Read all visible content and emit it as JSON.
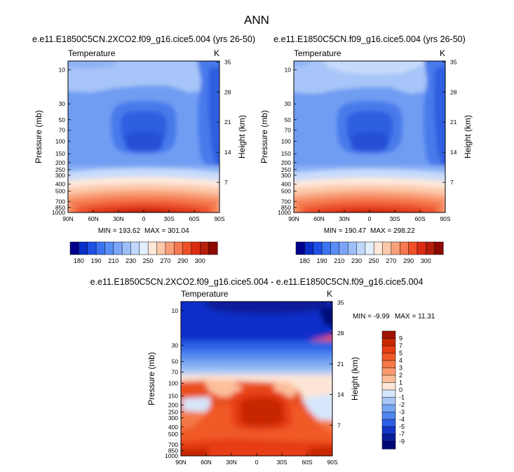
{
  "figure": {
    "title": "ANN"
  },
  "chart_data": [
    {
      "type": "heatmap",
      "title": "e.e11.E1850C5CN.2XCO2.f09_g16.cice5.004 (yrs 26-50)",
      "left_label": "Temperature",
      "units": "K",
      "xlabel": "",
      "ylabel": "Pressure (mb)",
      "y2label": "Height (km)",
      "x_ticks": [
        "90N",
        "60N",
        "30N",
        "0",
        "30S",
        "60S",
        "90S"
      ],
      "y_ticks": [
        "10",
        "30",
        "50",
        "70",
        "100",
        "150",
        "200",
        "250",
        "300",
        "400",
        "500",
        "700",
        "850",
        "1000"
      ],
      "y2_ticks": [
        "35",
        "28",
        "21",
        "14",
        "7"
      ],
      "min_label": "MIN = 193.62",
      "max_label": "MAX = 301.04",
      "min": 193.62,
      "max": 301.04,
      "colorbar": [
        "180",
        "190",
        "210",
        "230",
        "250",
        "270",
        "290",
        "300"
      ],
      "colorbar_colors": [
        "#00008c",
        "#0a2fc8",
        "#1e50e6",
        "#3c73f0",
        "#5a8cf5",
        "#7aa5f7",
        "#9dbff9",
        "#c0d8fb",
        "#e2efff",
        "#ffe8d8",
        "#fcc8aa",
        "#f9a07a",
        "#f57850",
        "#f05028",
        "#dc2d14",
        "#b41e0a",
        "#8c0a00"
      ]
    },
    {
      "type": "heatmap",
      "title": "e.e11.E1850C5CN.f09_g16.cice5.004 (yrs 26-50)",
      "left_label": "Temperature",
      "units": "K",
      "xlabel": "",
      "ylabel": "Pressure (mb)",
      "y2label": "Height (km)",
      "x_ticks": [
        "90N",
        "60N",
        "30N",
        "0",
        "30S",
        "60S",
        "90S"
      ],
      "y_ticks": [
        "10",
        "30",
        "50",
        "70",
        "100",
        "150",
        "200",
        "250",
        "300",
        "400",
        "500",
        "700",
        "850",
        "1000"
      ],
      "y2_ticks": [
        "35",
        "28",
        "21",
        "14",
        "7"
      ],
      "min_label": "MIN = 190.47",
      "max_label": "MAX = 298.22",
      "min": 190.47,
      "max": 298.22,
      "colorbar": [
        "180",
        "190",
        "210",
        "230",
        "250",
        "270",
        "290",
        "300"
      ],
      "colorbar_colors": [
        "#00008c",
        "#0a2fc8",
        "#1e50e6",
        "#3c73f0",
        "#5a8cf5",
        "#7aa5f7",
        "#9dbff9",
        "#c0d8fb",
        "#e2efff",
        "#ffe8d8",
        "#fcc8aa",
        "#f9a07a",
        "#f57850",
        "#f05028",
        "#dc2d14",
        "#b41e0a",
        "#8c0a00"
      ]
    },
    {
      "type": "heatmap",
      "title": "e.e11.E1850C5CN.2XCO2.f09_g16.cice5.004 - e.e11.E1850C5CN.f09_g16.cice5.004",
      "left_label": "Temperature",
      "units": "K",
      "xlabel": "",
      "ylabel": "Pressure (mb)",
      "y2label": "Height (km)",
      "x_ticks": [
        "90N",
        "60N",
        "30N",
        "0",
        "30S",
        "60S",
        "90S"
      ],
      "y_ticks": [
        "10",
        "30",
        "50",
        "70",
        "100",
        "150",
        "200",
        "250",
        "300",
        "400",
        "500",
        "700",
        "850",
        "1000"
      ],
      "y2_ticks": [
        "35",
        "28",
        "21",
        "14",
        "7"
      ],
      "min_label": "MIN = -9.99",
      "max_label": "MAX = 11.31",
      "min": -9.99,
      "max": 11.31,
      "colorbar": [
        "9",
        "7",
        "5",
        "4",
        "3",
        "2",
        "1",
        "0",
        "-1",
        "-2",
        "-3",
        "-4",
        "-5",
        "-7",
        "-9"
      ],
      "colorbar_colors": [
        "#a01400",
        "#c82800",
        "#e63c14",
        "#f05a28",
        "#f57846",
        "#f99a6e",
        "#fcbe9a",
        "#fde6d6",
        "#d6e6fb",
        "#a8c6f7",
        "#7aa6f3",
        "#5086ee",
        "#2c60e6",
        "#1436c8",
        "#0a1e9a",
        "#000878"
      ]
    }
  ]
}
